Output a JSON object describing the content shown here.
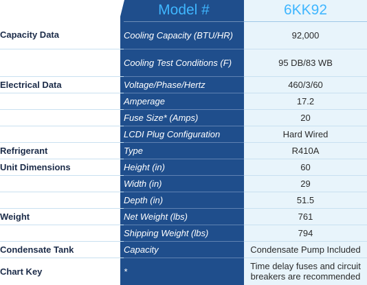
{
  "header": {
    "model_label": "Model #",
    "model_value": "6KK92"
  },
  "rows": [
    {
      "category": "Capacity Data",
      "attribute": "Cooling Capacity (BTU/HR)",
      "value": "92,000"
    },
    {
      "category": "",
      "attribute": "Cooling Test Conditions (F)",
      "value": "95 DB/83 WB"
    },
    {
      "category": "Electrical Data",
      "attribute": "Voltage/Phase/Hertz",
      "value": "460/3/60"
    },
    {
      "category": "",
      "attribute": "Amperage",
      "value": "17.2"
    },
    {
      "category": "",
      "attribute": "Fuse Size* (Amps)",
      "value": "20"
    },
    {
      "category": "",
      "attribute": "LCDI Plug Configuration",
      "value": "Hard Wired"
    },
    {
      "category": "Refrigerant",
      "attribute": "Type",
      "value": "R410A"
    },
    {
      "category": "Unit Dimensions",
      "attribute": "Height (in)",
      "value": "60"
    },
    {
      "category": "",
      "attribute": "Width (in)",
      "value": "29"
    },
    {
      "category": "",
      "attribute": "Depth (in)",
      "value": "51.5"
    },
    {
      "category": "Weight",
      "attribute": "Net Weight (lbs)",
      "value": "761"
    },
    {
      "category": "",
      "attribute": "Shipping Weight (lbs)",
      "value": "794"
    },
    {
      "category": "Condensate Tank",
      "attribute": "Capacity",
      "value": "Condensate Pump Included"
    },
    {
      "category": "Chart Key",
      "attribute": "*",
      "value": "Time delay fuses and circuit breakers are recommended"
    }
  ]
}
